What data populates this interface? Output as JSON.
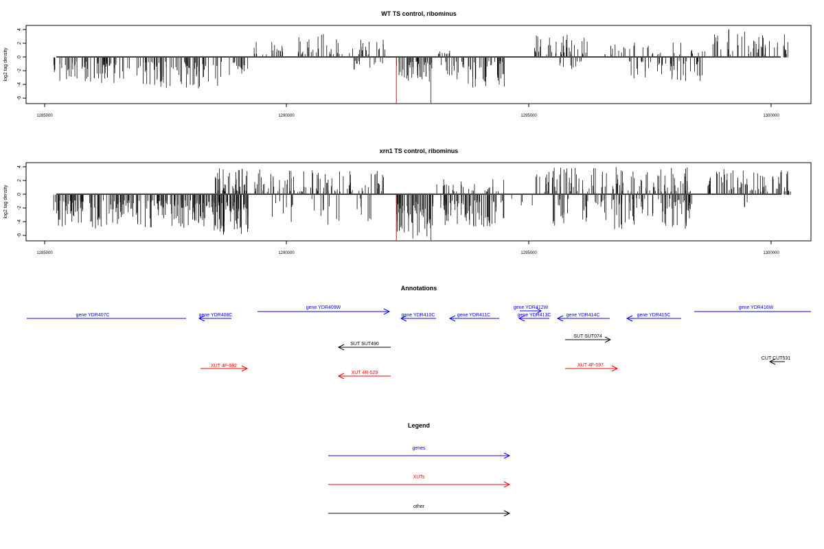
{
  "panels": [
    {
      "title": "WT TS control, ribominus",
      "ylabel": "log2 tag density",
      "y_ticks": [
        "4",
        "2",
        "0",
        "-2",
        "-4",
        "-6"
      ],
      "x_ticks": [
        "1285000",
        "1290000",
        "1295000",
        "1300000"
      ]
    },
    {
      "title": "xrn1 TS control, ribominus",
      "ylabel": "log2 tag density",
      "y_ticks": [
        "4",
        "2",
        "0",
        "-2",
        "-4",
        "-6"
      ],
      "x_ticks": [
        "1285000",
        "1290000",
        "1295000",
        "1300000"
      ]
    }
  ],
  "chart_data": [
    {
      "type": "bar",
      "title": "WT TS control, ribominus",
      "xlabel": "",
      "ylabel": "log2 tag density",
      "xlim": [
        1284700,
        1300600
      ],
      "ylim": [
        -6.5,
        4.5
      ],
      "colors": {
        "bars": "#000000",
        "highlight": "#ff0000"
      },
      "highlight_x": [
        1292200,
        1292900
      ],
      "segments": [
        {
          "from": 1285250,
          "to": 1286800,
          "sign": -1,
          "min": 0.6,
          "max": 3.6,
          "density": 65
        },
        {
          "from": 1286900,
          "to": 1288700,
          "sign": -1,
          "min": 0.6,
          "max": 4.4,
          "density": 75
        },
        {
          "from": 1288800,
          "to": 1289200,
          "sign": -1,
          "min": 0.6,
          "max": 2.5,
          "density": 15
        },
        {
          "from": 1289300,
          "to": 1289900,
          "sign": 1,
          "min": 0.4,
          "max": 2.2,
          "density": 18
        },
        {
          "from": 1290200,
          "to": 1291200,
          "sign": 1,
          "min": 0.4,
          "max": 3.6,
          "density": 28
        },
        {
          "from": 1291200,
          "to": 1292000,
          "sign": 1,
          "min": 0.4,
          "max": 2.6,
          "density": 20
        },
        {
          "from": 1291250,
          "to": 1291950,
          "sign": -1,
          "min": 0.5,
          "max": 2.1,
          "density": 12
        },
        {
          "from": 1292200,
          "to": 1292950,
          "sign": -1,
          "min": 0.6,
          "max": 3.4,
          "density": 45
        },
        {
          "from": 1293000,
          "to": 1293300,
          "sign": 1,
          "min": 0.4,
          "max": 1.3,
          "density": 10
        },
        {
          "from": 1293100,
          "to": 1294400,
          "sign": -1,
          "min": 0.5,
          "max": 4.3,
          "density": 50
        },
        {
          "from": 1295000,
          "to": 1296100,
          "sign": 1,
          "min": 0.4,
          "max": 3.5,
          "density": 38
        },
        {
          "from": 1295500,
          "to": 1296000,
          "sign": -1,
          "min": 0.5,
          "max": 2.0,
          "density": 10
        },
        {
          "from": 1296400,
          "to": 1298500,
          "sign": 1,
          "min": 0.4,
          "max": 2.4,
          "density": 32
        },
        {
          "from": 1296900,
          "to": 1298400,
          "sign": -1,
          "min": 0.5,
          "max": 3.5,
          "density": 48
        },
        {
          "from": 1298600,
          "to": 1300200,
          "sign": 1,
          "min": 0.4,
          "max": 4.1,
          "density": 48
        }
      ]
    },
    {
      "type": "bar",
      "title": "xrn1 TS control, ribominus",
      "xlabel": "",
      "ylabel": "log2 tag density",
      "xlim": [
        1284700,
        1300600
      ],
      "ylim": [
        -6.5,
        4.5
      ],
      "colors": {
        "bars": "#000000",
        "highlight": "#ff0000"
      },
      "highlight_x": [
        1292200,
        1292900
      ],
      "segments": [
        {
          "from": 1285250,
          "to": 1288400,
          "sign": -1,
          "min": 0.8,
          "max": 4.8,
          "density": 190
        },
        {
          "from": 1288400,
          "to": 1289200,
          "sign": -1,
          "min": 1.0,
          "max": 6.3,
          "density": 70
        },
        {
          "from": 1288500,
          "to": 1289200,
          "sign": 1,
          "min": 0.5,
          "max": 3.7,
          "density": 40
        },
        {
          "from": 1289300,
          "to": 1292000,
          "sign": 1,
          "min": 0.4,
          "max": 3.6,
          "density": 90
        },
        {
          "from": 1289400,
          "to": 1291900,
          "sign": -1,
          "min": 0.5,
          "max": 4.6,
          "density": 25
        },
        {
          "from": 1292200,
          "to": 1292950,
          "sign": -1,
          "min": 1.0,
          "max": 6.2,
          "density": 60
        },
        {
          "from": 1293000,
          "to": 1294400,
          "sign": 1,
          "min": 0.4,
          "max": 2.6,
          "density": 30
        },
        {
          "from": 1293100,
          "to": 1294400,
          "sign": -1,
          "min": 0.8,
          "max": 4.5,
          "density": 70
        },
        {
          "from": 1294500,
          "to": 1295000,
          "sign": -1,
          "min": 0.5,
          "max": 1.6,
          "density": 4
        },
        {
          "from": 1295000,
          "to": 1298200,
          "sign": 1,
          "min": 0.4,
          "max": 3.9,
          "density": 110
        },
        {
          "from": 1295300,
          "to": 1298200,
          "sign": -1,
          "min": 0.5,
          "max": 5.0,
          "density": 100
        },
        {
          "from": 1298500,
          "to": 1300200,
          "sign": 1,
          "min": 0.4,
          "max": 3.6,
          "density": 75
        },
        {
          "from": 1299200,
          "to": 1299400,
          "sign": -1,
          "min": 0.5,
          "max": 1.8,
          "density": 3
        }
      ]
    }
  ],
  "annotations": {
    "title": "Annotations",
    "items": [
      {
        "label": "gene YDR407C",
        "color": "#0000ff",
        "strand": "+",
        "kind": "gene"
      },
      {
        "label": "gene YDR408C",
        "color": "#0000ff",
        "strand": "-",
        "kind": "gene"
      },
      {
        "label": "gene YDR409W",
        "color": "#0000ff",
        "strand": "+",
        "kind": "gene"
      },
      {
        "label": "gene YDR410C",
        "color": "#0000ff",
        "strand": "-",
        "kind": "gene"
      },
      {
        "label": "gene YDR411C",
        "color": "#0000ff",
        "strand": "-",
        "kind": "gene"
      },
      {
        "label": "gene YDR412W",
        "color": "#0000ff",
        "strand": "+",
        "kind": "gene"
      },
      {
        "label": "gene YDR413C",
        "color": "#0000ff",
        "strand": "-",
        "kind": "gene"
      },
      {
        "label": "gene YDR414C",
        "color": "#0000ff",
        "strand": "-",
        "kind": "gene"
      },
      {
        "label": "gene YDR415C",
        "color": "#0000ff",
        "strand": "-",
        "kind": "gene"
      },
      {
        "label": "gene YDR416W",
        "color": "#0000ff",
        "strand": "+",
        "kind": "gene"
      },
      {
        "label": "SUT SUT490",
        "color": "#000000",
        "strand": "-",
        "kind": "other"
      },
      {
        "label": "SUT SUT074",
        "color": "#000000",
        "strand": "+",
        "kind": "other"
      },
      {
        "label": "CUT CUT531",
        "color": "#000000",
        "strand": "-",
        "kind": "other"
      },
      {
        "label": "XUT 4F-592",
        "color": "#ff0000",
        "strand": "+",
        "kind": "xut"
      },
      {
        "label": "XUT 4R-529",
        "color": "#ff0000",
        "strand": "-",
        "kind": "xut"
      },
      {
        "label": "XUT 4F-597",
        "color": "#ff0000",
        "strand": "+",
        "kind": "xut"
      }
    ]
  },
  "legend": {
    "title": "Legend",
    "items": [
      {
        "label": "genes",
        "color": "#0000ff"
      },
      {
        "label": "XUTs",
        "color": "#ff0000"
      },
      {
        "label": "other",
        "color": "#000000"
      }
    ]
  }
}
